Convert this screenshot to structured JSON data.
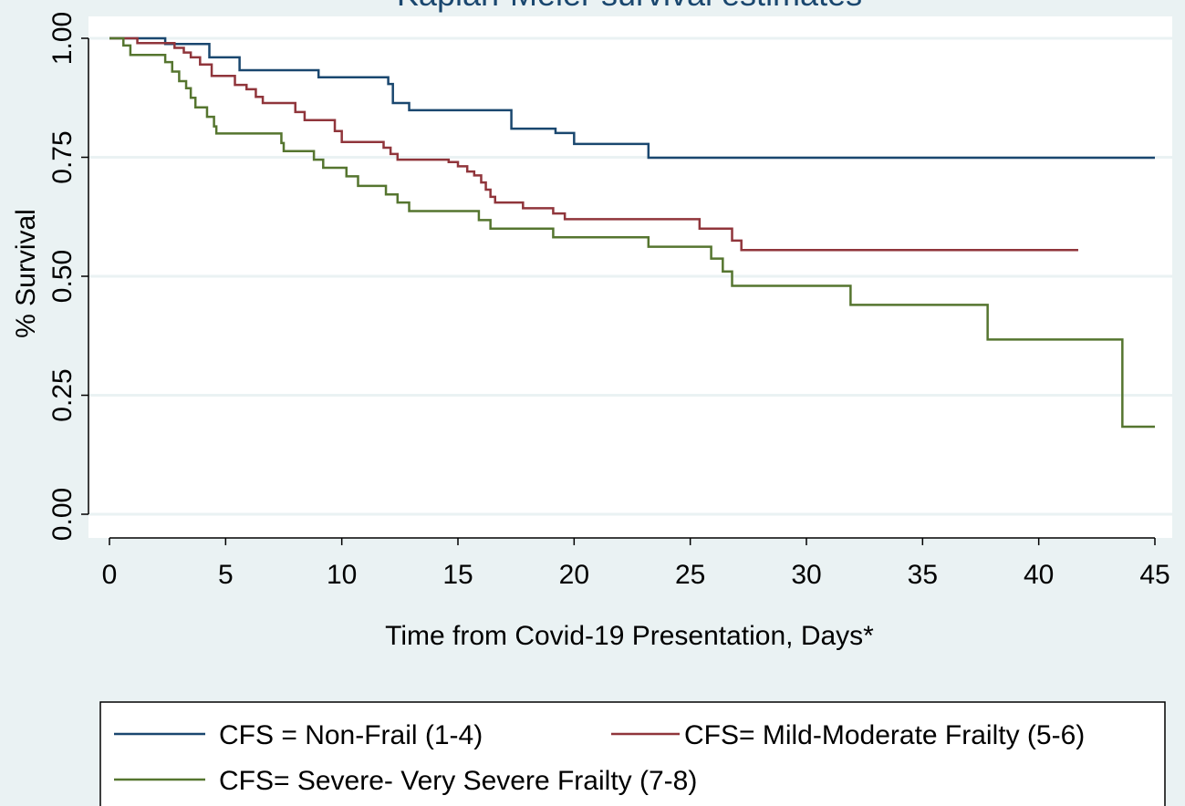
{
  "chart_data": {
    "type": "step",
    "title": "Kaplan-Meier survival estimates",
    "x_label": "Time from Covid-19 Presentation, Days*",
    "y_label": "% Survival",
    "xlim": [
      0,
      45
    ],
    "xticks": [
      0,
      5,
      10,
      15,
      20,
      25,
      30,
      35,
      40,
      45
    ],
    "ylim": [
      0,
      1
    ],
    "yticks": [
      {
        "value": 0,
        "label": "0.00"
      },
      {
        "value": 0.25,
        "label": "0.25"
      },
      {
        "value": 0.5,
        "label": "0.50"
      },
      {
        "value": 0.75,
        "label": "0.75"
      },
      {
        "value": 1,
        "label": "1.00"
      }
    ],
    "grid": true,
    "legend": "bottom",
    "series": [
      {
        "name": "CFS = Non-Frail (1-4)",
        "color": "#1a476f",
        "x": [
          0,
          2.4,
          4.3,
          5.6,
          9,
          12,
          12.2,
          12.9,
          17.3,
          19.2,
          20,
          23.2,
          45
        ],
        "values": [
          1,
          0.988,
          0.96,
          0.933,
          0.918,
          0.904,
          0.864,
          0.849,
          0.81,
          0.801,
          0.778,
          0.749,
          0.749
        ]
      },
      {
        "name": "CFS= Mild-Moderate Frailty (5-6)",
        "color": "#90353b",
        "x": [
          0,
          1.2,
          2.8,
          3.2,
          3.5,
          3.9,
          4.4,
          5.4,
          5.9,
          6.3,
          6.6,
          8,
          8.4,
          9.7,
          10,
          11.8,
          12.1,
          12.4,
          14.6,
          15,
          15.4,
          15.7,
          16,
          16.2,
          16.4,
          16.6,
          17.8,
          19.1,
          19.6,
          25.4,
          26.8,
          27.2,
          41.7
        ],
        "values": [
          1,
          0.99,
          0.98,
          0.97,
          0.96,
          0.945,
          0.921,
          0.902,
          0.893,
          0.877,
          0.864,
          0.845,
          0.828,
          0.805,
          0.782,
          0.77,
          0.757,
          0.745,
          0.74,
          0.731,
          0.72,
          0.712,
          0.697,
          0.682,
          0.667,
          0.655,
          0.643,
          0.632,
          0.62,
          0.6,
          0.575,
          0.555,
          0.555
        ]
      },
      {
        "name": "CFS= Severe- Very Severe Frailty (7-8)",
        "color": "#55752f",
        "x": [
          0,
          0.6,
          0.9,
          2.4,
          2.7,
          3,
          3.3,
          3.5,
          3.7,
          4.2,
          4.5,
          4.6,
          7.4,
          7.5,
          8.8,
          9.2,
          10.2,
          10.7,
          11.9,
          12.4,
          12.9,
          15.9,
          16.4,
          19.1,
          23.2,
          25.9,
          26.4,
          26.8,
          31.9,
          37.8,
          43.6,
          45
        ],
        "values": [
          1,
          0.985,
          0.965,
          0.95,
          0.93,
          0.91,
          0.895,
          0.875,
          0.855,
          0.835,
          0.815,
          0.8,
          0.78,
          0.763,
          0.745,
          0.728,
          0.71,
          0.69,
          0.672,
          0.655,
          0.637,
          0.618,
          0.6,
          0.582,
          0.562,
          0.537,
          0.51,
          0.48,
          0.44,
          0.367,
          0.184,
          0.184
        ]
      }
    ]
  }
}
